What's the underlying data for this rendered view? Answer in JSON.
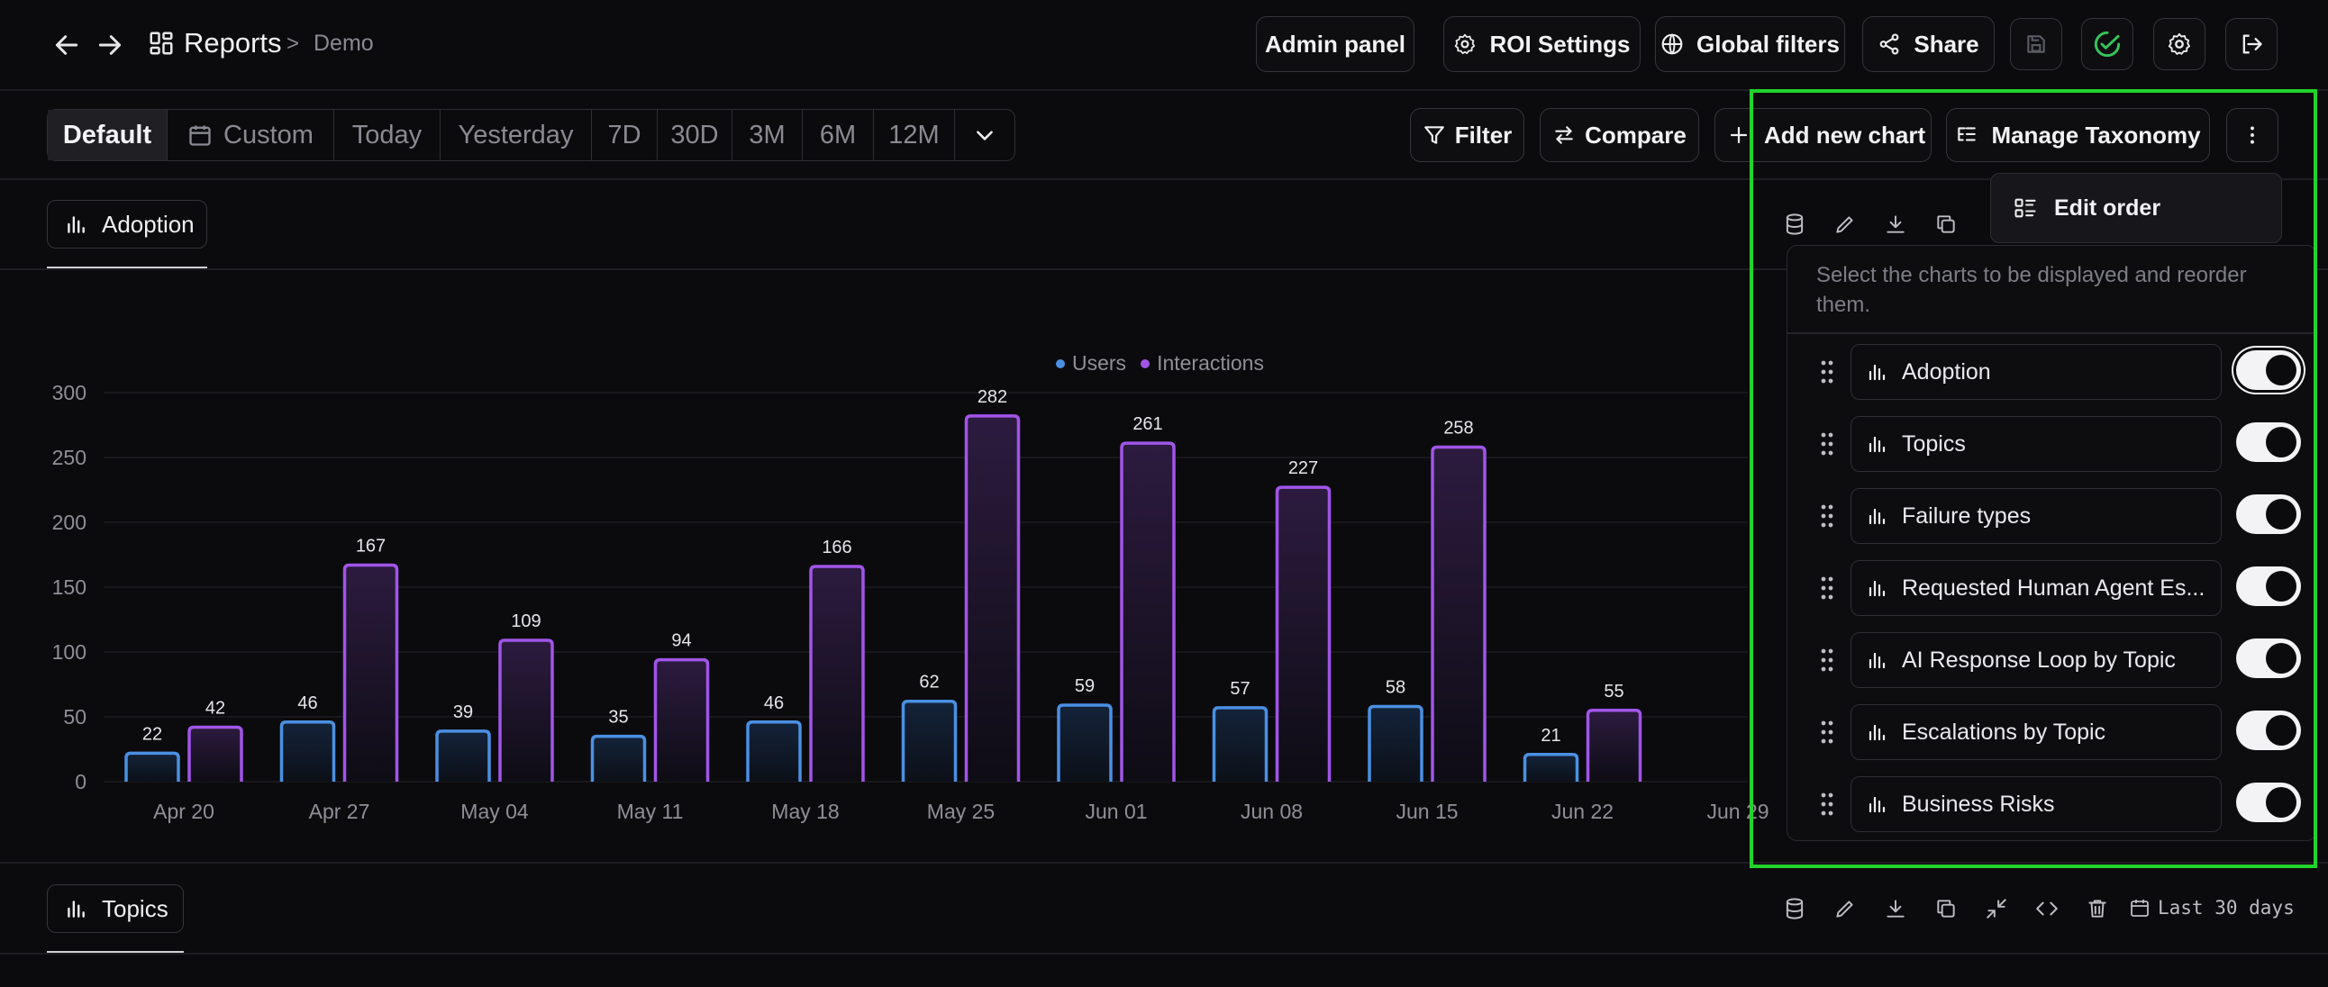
{
  "header": {
    "title": "Reports",
    "breadcrumb_sep": ">",
    "breadcrumb_current": "Demo",
    "admin_panel": "Admin panel",
    "roi_settings": "ROI Settings",
    "global_filters": "Global filters",
    "share": "Share"
  },
  "range": {
    "items": [
      "Default",
      "Custom",
      "Today",
      "Yesterday",
      "7D",
      "30D",
      "3M",
      "6M",
      "12M"
    ],
    "active": "Default"
  },
  "toolbar": {
    "filter": "Filter",
    "compare": "Compare",
    "add_chart": "Add new chart",
    "manage_taxonomy": "Manage Taxonomy"
  },
  "tabs": {
    "adoption": "Adoption",
    "topics": "Topics"
  },
  "bottom_range": "Last 30 days",
  "menu": {
    "edit_order": "Edit order"
  },
  "panel": {
    "description": "Select the charts to be displayed and reorder them.",
    "items": [
      {
        "label": "Adoption",
        "enabled": true
      },
      {
        "label": "Topics",
        "enabled": true
      },
      {
        "label": "Failure types",
        "enabled": true
      },
      {
        "label": "Requested Human Agent Es...",
        "enabled": true
      },
      {
        "label": "AI Response Loop by Topic",
        "enabled": true
      },
      {
        "label": "Escalations by Topic",
        "enabled": true
      },
      {
        "label": "Business Risks",
        "enabled": true
      }
    ]
  },
  "colors": {
    "users": "#4a90e2",
    "interactions": "#a155e8",
    "highlight": "#22d32c"
  },
  "chart_data": {
    "type": "bar",
    "categories": [
      "Apr 20",
      "Apr 27",
      "May 04",
      "May 11",
      "May 18",
      "May 25",
      "Jun 01",
      "Jun 08",
      "Jun 15",
      "Jun 22",
      "Jun 29"
    ],
    "series": [
      {
        "name": "Users",
        "values": [
          22,
          46,
          39,
          35,
          46,
          62,
          59,
          57,
          58,
          21,
          null
        ]
      },
      {
        "name": "Interactions",
        "values": [
          42,
          167,
          109,
          94,
          166,
          282,
          261,
          227,
          258,
          55,
          null
        ]
      }
    ],
    "yticks": [
      0,
      50,
      100,
      150,
      200,
      250,
      300
    ],
    "ylim": [
      0,
      300
    ],
    "grid": true,
    "legend": "top-center"
  }
}
